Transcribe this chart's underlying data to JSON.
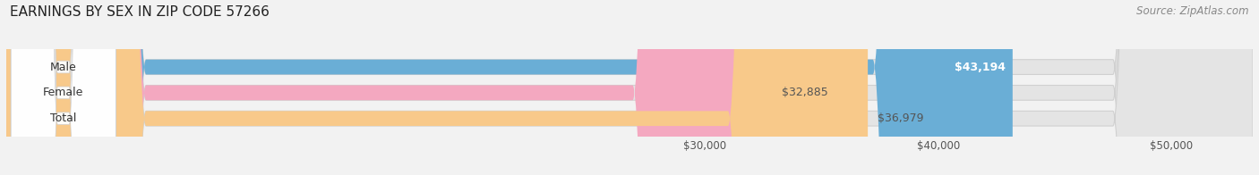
{
  "title": "EARNINGS BY SEX IN ZIP CODE 57266",
  "source": "Source: ZipAtlas.com",
  "categories": [
    "Male",
    "Female",
    "Total"
  ],
  "values": [
    43194,
    32885,
    36979
  ],
  "bar_colors": [
    "#6aaed6",
    "#f4a8c0",
    "#f8c98a"
  ],
  "value_labels": [
    "$43,194",
    "$32,885",
    "$36,979"
  ],
  "value_label_inside": [
    true,
    false,
    false
  ],
  "value_label_color_inside": "white",
  "value_label_color_outside": "#555555",
  "xmin": 0,
  "xmax": 53500,
  "xticks": [
    30000,
    40000,
    50000
  ],
  "xtick_labels": [
    "$30,000",
    "$40,000",
    "$50,000"
  ],
  "background_color": "#f2f2f2",
  "bar_bg_color": "#e4e4e4",
  "title_fontsize": 11,
  "source_fontsize": 8.5,
  "label_fontsize": 9,
  "value_fontsize": 9,
  "tick_fontsize": 8.5,
  "bar_height": 0.58,
  "bar_gap": 0.42
}
